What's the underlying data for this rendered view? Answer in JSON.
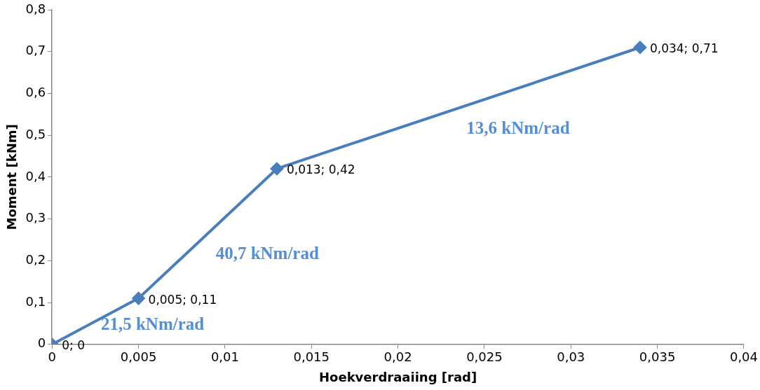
{
  "chart_data": {
    "type": "line",
    "xlabel": "Hoekverdraaiing [rad]",
    "ylabel": "Moment [kNm]",
    "xlim": [
      0,
      0.04
    ],
    "xticks": [
      0,
      {
        "value": 0.005,
        "label": "0,005"
      },
      {
        "value": 0.01,
        "label": "0,01"
      },
      {
        "value": 0.015,
        "label": "0,015"
      },
      {
        "value": 0.02,
        "label": "0,02"
      },
      {
        "value": 0.025,
        "label": "0,025"
      },
      {
        "value": 0.03,
        "label": "0,03"
      },
      {
        "value": 0.035,
        "label": "0,035"
      },
      {
        "value": 0.04,
        "label": "0,04"
      }
    ],
    "ylim": [
      0,
      0.8
    ],
    "yticks": [
      0,
      {
        "value": 0.1,
        "label": "0,1"
      },
      {
        "value": 0.2,
        "label": "0,2"
      },
      {
        "value": 0.3,
        "label": "0,3"
      },
      {
        "value": 0.4,
        "label": "0,4"
      },
      {
        "value": 0.5,
        "label": "0,5"
      },
      {
        "value": 0.6,
        "label": "0,6"
      },
      {
        "value": 0.7,
        "label": "0,7"
      },
      {
        "value": 0.8,
        "label": "0,8"
      }
    ],
    "grid": false,
    "legend": false,
    "marker": "diamond",
    "line_style": "solid",
    "series": [
      {
        "color": "#4a7ebb",
        "x": [
          0,
          0.005,
          0.013,
          0.034
        ],
        "values": [
          0,
          0.11,
          0.42,
          0.71
        ],
        "value_labels": [
          "0; 0",
          "0,005; 0,11",
          "0,013; 0,42",
          "0,034; 0,71"
        ]
      }
    ],
    "annotations": [
      "21,5 kNm/rad",
      "40,7 kNm/rad",
      "13,6 kNm/rad"
    ]
  }
}
